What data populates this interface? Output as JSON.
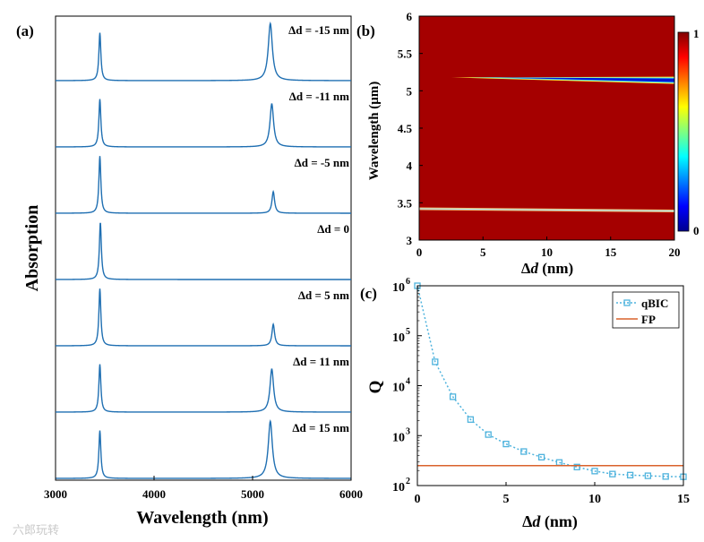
{
  "figure": {
    "watermark": "六郎玩转"
  },
  "chart_data": [
    {
      "panel": "(a)",
      "type": "line",
      "title": "",
      "xlabel": "Wavelength (nm)",
      "ylabel": "Absorption",
      "xlim": [
        3000,
        6000
      ],
      "xticks": [
        3000,
        4000,
        5000,
        6000
      ],
      "xtick_labels": [
        "3000",
        "4000",
        "5000",
        "6000"
      ],
      "layout_note": "stacked offset traces, top to bottom",
      "series": [
        {
          "name": "Δd = -15 nm",
          "peaks": [
            {
              "x": 3450,
              "height": 0.82,
              "width": 12
            },
            {
              "x": 5180,
              "height": 0.98,
              "width": 25
            }
          ]
        },
        {
          "name": "Δd = -11 nm",
          "peaks": [
            {
              "x": 3450,
              "height": 0.82,
              "width": 12
            },
            {
              "x": 5195,
              "height": 0.74,
              "width": 22
            }
          ]
        },
        {
          "name": "Δd = -5 nm",
          "peaks": [
            {
              "x": 3450,
              "height": 0.98,
              "width": 12
            },
            {
              "x": 5210,
              "height": 0.37,
              "width": 16
            }
          ]
        },
        {
          "name": "Δd = 0",
          "peaks": [
            {
              "x": 3455,
              "height": 0.98,
              "width": 12
            }
          ]
        },
        {
          "name": "Δd = 5 nm",
          "peaks": [
            {
              "x": 3450,
              "height": 0.98,
              "width": 12
            },
            {
              "x": 5210,
              "height": 0.37,
              "width": 16
            }
          ]
        },
        {
          "name": "Δd = 11 nm",
          "peaks": [
            {
              "x": 3450,
              "height": 0.82,
              "width": 12
            },
            {
              "x": 5195,
              "height": 0.74,
              "width": 22
            }
          ]
        },
        {
          "name": "Δd = 15 nm",
          "peaks": [
            {
              "x": 3450,
              "height": 0.82,
              "width": 12
            },
            {
              "x": 5180,
              "height": 0.98,
              "width": 25
            }
          ]
        }
      ]
    },
    {
      "panel": "(b)",
      "type": "heatmap",
      "title": "",
      "xlabel_prefix": "Δ",
      "xlabel_var": "d",
      "xlabel_unit": " (nm)",
      "ylabel": "Wavelength (μm)",
      "xlim": [
        0,
        20
      ],
      "ylim": [
        3,
        6
      ],
      "xticks": [
        0,
        5,
        10,
        15,
        20
      ],
      "xtick_labels": [
        "0",
        "5",
        "10",
        "15",
        "20"
      ],
      "yticks": [
        3,
        3.5,
        4,
        4.5,
        5,
        5.5,
        6
      ],
      "ytick_labels": [
        "3",
        "3.5",
        "4",
        "4.5",
        "5",
        "5.5",
        "6"
      ],
      "colorbar": {
        "min": 0,
        "max": 1,
        "labels": [
          "0",
          "1"
        ],
        "colormap": "jet"
      },
      "background_value": 0.98,
      "bands": [
        {
          "name": "qBIC resonance",
          "wavelength_start": 5.18,
          "wavelength_end": 5.14,
          "onset_dd": 2.5
        },
        {
          "name": "FP resonance",
          "wavelength_start": 3.42,
          "wavelength_end": 3.39,
          "onset_dd": 0
        }
      ]
    },
    {
      "panel": "(c)",
      "type": "line",
      "title": "",
      "xlabel_prefix": "Δ",
      "xlabel_var": "d",
      "xlabel_unit": " (nm)",
      "ylabel": "Q",
      "yscale": "log",
      "xlim": [
        0,
        15
      ],
      "ylim": [
        100,
        1000000
      ],
      "xticks": [
        0,
        5,
        10,
        15
      ],
      "xtick_labels": [
        "0",
        "5",
        "10",
        "15"
      ],
      "yticks": [
        100,
        1000,
        10000,
        100000,
        1000000
      ],
      "ytick_exponents": [
        "2",
        "3",
        "4",
        "5",
        "6"
      ],
      "ytick_base": "10",
      "legend_position": "top-right",
      "series": [
        {
          "name": "qBIC",
          "color": "#4fb3dd",
          "style": "dotted-square",
          "x": [
            0,
            1,
            2,
            3,
            4,
            5,
            6,
            7,
            8,
            9,
            10,
            11,
            12,
            13,
            14,
            15
          ],
          "y": [
            1000000,
            30000,
            6000,
            2100,
            1050,
            680,
            480,
            370,
            290,
            235,
            195,
            170,
            162,
            157,
            152,
            150
          ]
        },
        {
          "name": "FP",
          "color": "#d9622b",
          "style": "solid",
          "x": [
            0,
            15
          ],
          "y": [
            250,
            250
          ]
        }
      ]
    }
  ]
}
